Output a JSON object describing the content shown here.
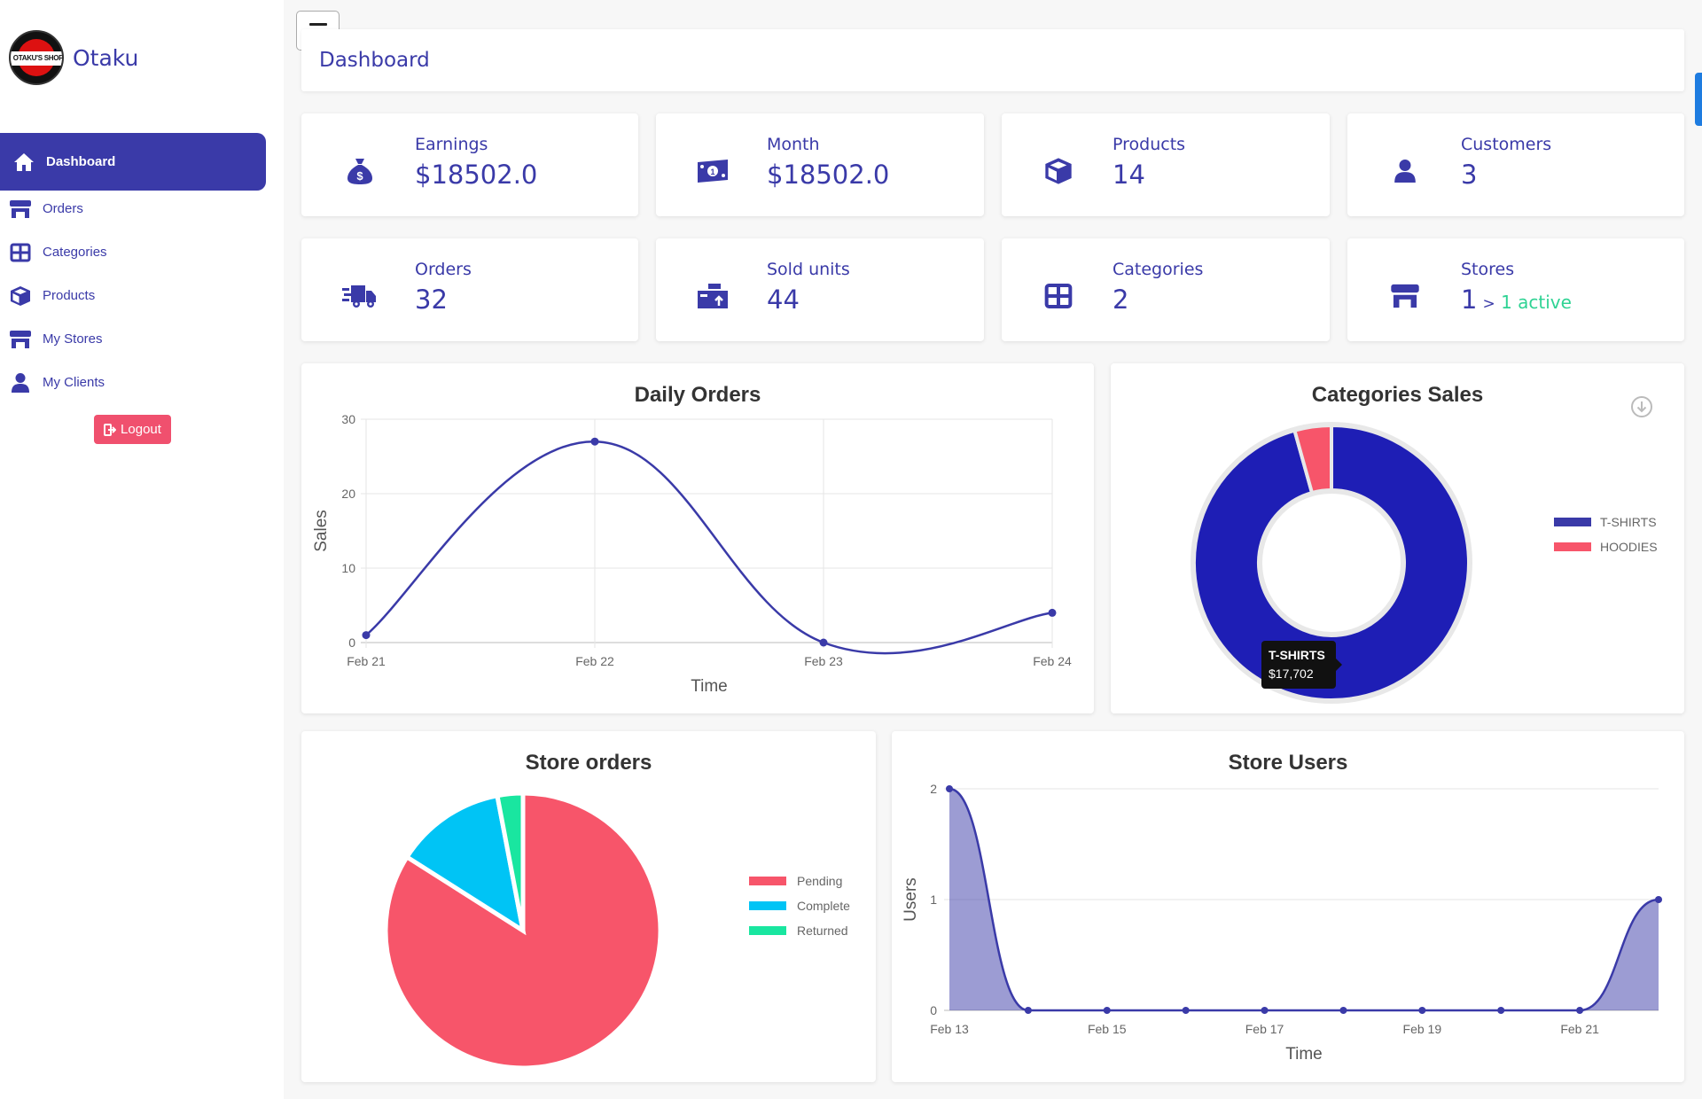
{
  "brand": {
    "name": "Otaku",
    "logo_text": "OTAKU'S SHOP"
  },
  "sidebar": {
    "items": [
      {
        "label": "Dashboard",
        "icon": "home-icon",
        "active": true
      },
      {
        "label": "Orders",
        "icon": "store-icon"
      },
      {
        "label": "Categories",
        "icon": "grid-icon"
      },
      {
        "label": "Products",
        "icon": "cube-icon"
      },
      {
        "label": "My Stores",
        "icon": "store-icon"
      },
      {
        "label": "My Clients",
        "icon": "user-icon"
      }
    ],
    "logout": "Logout"
  },
  "header": {
    "title": "Dashboard"
  },
  "stats": [
    {
      "label": "Earnings",
      "value": "$18502.0",
      "icon": "money-bag-icon"
    },
    {
      "label": "Month",
      "value": "$18502.0",
      "icon": "banknote-icon"
    },
    {
      "label": "Products",
      "value": "14",
      "icon": "cube-icon"
    },
    {
      "label": "Customers",
      "value": "3",
      "icon": "user-icon"
    },
    {
      "label": "Orders",
      "value": "32",
      "icon": "truck-icon"
    },
    {
      "label": "Sold units",
      "value": "44",
      "icon": "boxes-icon"
    },
    {
      "label": "Categories",
      "value": "2",
      "icon": "grid-icon"
    },
    {
      "label": "Stores",
      "value": "1",
      "sub_prefix": ">",
      "sub": "1 active",
      "icon": "store-icon"
    }
  ],
  "colors": {
    "primary": "#3a3aa8",
    "pink": "#f7556a",
    "cyan": "#00c4f5",
    "green": "#19e6a0",
    "active": "#2fd394",
    "donut_blue": "#1e1eb5"
  },
  "chart_data": [
    {
      "type": "line",
      "title": "Daily Orders",
      "xlabel": "Time",
      "ylabel": "Sales",
      "categories": [
        "Feb 21",
        "Feb 22",
        "Feb 23",
        "Feb 24"
      ],
      "values": [
        1,
        27,
        0,
        4
      ],
      "ylim": [
        0,
        30
      ],
      "yticks": [
        0,
        10,
        20,
        30
      ],
      "grid": true,
      "smooth": true
    },
    {
      "type": "pie",
      "donut": true,
      "title": "Categories Sales",
      "labels": [
        "T-SHIRTS",
        "HOODIES"
      ],
      "values": [
        17702,
        800
      ],
      "legend": "right",
      "tooltip": {
        "label": "T-SHIRTS",
        "value": "$17,702"
      }
    },
    {
      "type": "pie",
      "title": "Store orders",
      "labels": [
        "Pending",
        "Complete",
        "Returned"
      ],
      "values": [
        84,
        13,
        3
      ],
      "legend": "right"
    },
    {
      "type": "area",
      "title": "Store Users",
      "xlabel": "Time",
      "ylabel": "Users",
      "x": [
        "Feb 13",
        "Feb 14",
        "Feb 15",
        "Feb 16",
        "Feb 17",
        "Feb 18",
        "Feb 19",
        "Feb 20",
        "Feb 21",
        "Feb 22"
      ],
      "xtick_labels": [
        "Feb 13",
        "Feb 15",
        "Feb 17",
        "Feb 19",
        "Feb 21"
      ],
      "values": [
        2,
        0,
        0,
        0,
        0,
        0,
        0,
        0,
        0,
        1
      ],
      "ylim": [
        0,
        2
      ],
      "yticks": [
        0,
        1,
        2
      ],
      "grid": true
    }
  ]
}
